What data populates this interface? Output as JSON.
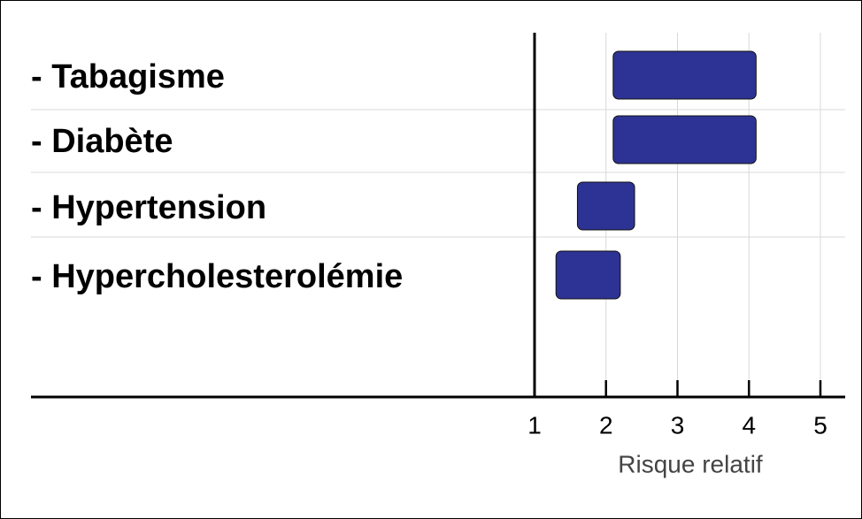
{
  "chart_data": {
    "type": "range-bar",
    "categories": [
      "- Tabagisme",
      "- Diabète",
      "- Hypertension",
      "- Hypercholesterolémie"
    ],
    "values": [
      [
        2.1,
        4.1
      ],
      [
        2.1,
        4.1
      ],
      [
        1.6,
        2.4
      ],
      [
        1.3,
        2.2
      ]
    ],
    "color": "#2d3394",
    "xlabel": "Risque relatif",
    "xlim": [
      1,
      5
    ],
    "xticks": [
      1,
      2,
      3,
      4,
      5
    ],
    "grid": true
  }
}
